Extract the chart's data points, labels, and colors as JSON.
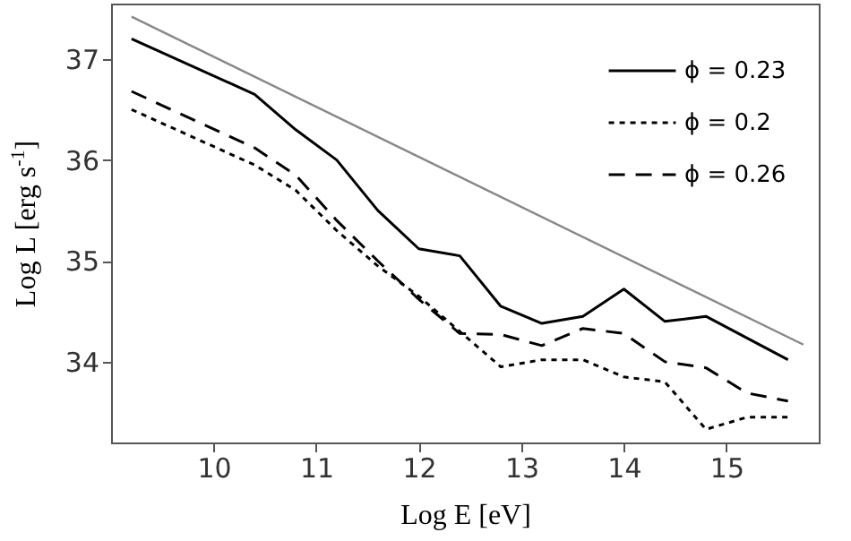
{
  "chart_data": {
    "type": "line",
    "xlabel": "Log E [eV]",
    "ylabel": "Log L [erg s$^{-1}$]",
    "xlim": [
      9.0,
      15.9
    ],
    "ylim": [
      33.2,
      37.55
    ],
    "xticks": [
      10,
      11,
      12,
      13,
      14,
      15
    ],
    "yticks": [
      34,
      35,
      36,
      37
    ],
    "grid": false,
    "legend": "top right",
    "marker": "none",
    "series": [
      {
        "name": "ϕ = 0.23",
        "color": "#000000",
        "line_style": "solid",
        "x": [
          9.2,
          10.4,
          10.8,
          11.2,
          11.6,
          12.0,
          12.4,
          12.8,
          13.2,
          13.6,
          14.0,
          14.4,
          14.8,
          15.6
        ],
        "values": [
          37.2,
          36.65,
          36.3,
          36.0,
          35.5,
          35.12,
          35.05,
          34.55,
          34.38,
          34.45,
          34.72,
          34.4,
          34.45,
          34.02
        ]
      },
      {
        "name": "ϕ = 0.2",
        "color": "#000000",
        "line_style": "dotted",
        "x": [
          9.2,
          10.4,
          10.8,
          11.2,
          11.6,
          12.0,
          12.4,
          12.8,
          13.2,
          13.6,
          14.0,
          14.4,
          14.8,
          15.2,
          15.6
        ],
        "values": [
          36.5,
          35.95,
          35.7,
          35.3,
          34.95,
          34.65,
          34.3,
          33.95,
          34.02,
          34.02,
          33.85,
          33.8,
          33.33,
          33.45,
          33.45
        ]
      },
      {
        "name": "ϕ = 0.26",
        "color": "#000000",
        "line_style": "dashed",
        "x": [
          9.2,
          10.4,
          10.8,
          11.2,
          11.6,
          12.0,
          12.4,
          12.8,
          13.2,
          13.6,
          14.0,
          14.4,
          14.8,
          15.2,
          15.6
        ],
        "values": [
          36.68,
          36.12,
          35.85,
          35.4,
          35.0,
          34.62,
          34.28,
          34.27,
          34.16,
          34.33,
          34.28,
          34.0,
          33.94,
          33.69,
          33.61
        ]
      },
      {
        "color": "#888888",
        "line_style": "solid",
        "x": [
          9.2,
          15.75
        ],
        "values": [
          37.42,
          34.17
        ]
      }
    ]
  }
}
